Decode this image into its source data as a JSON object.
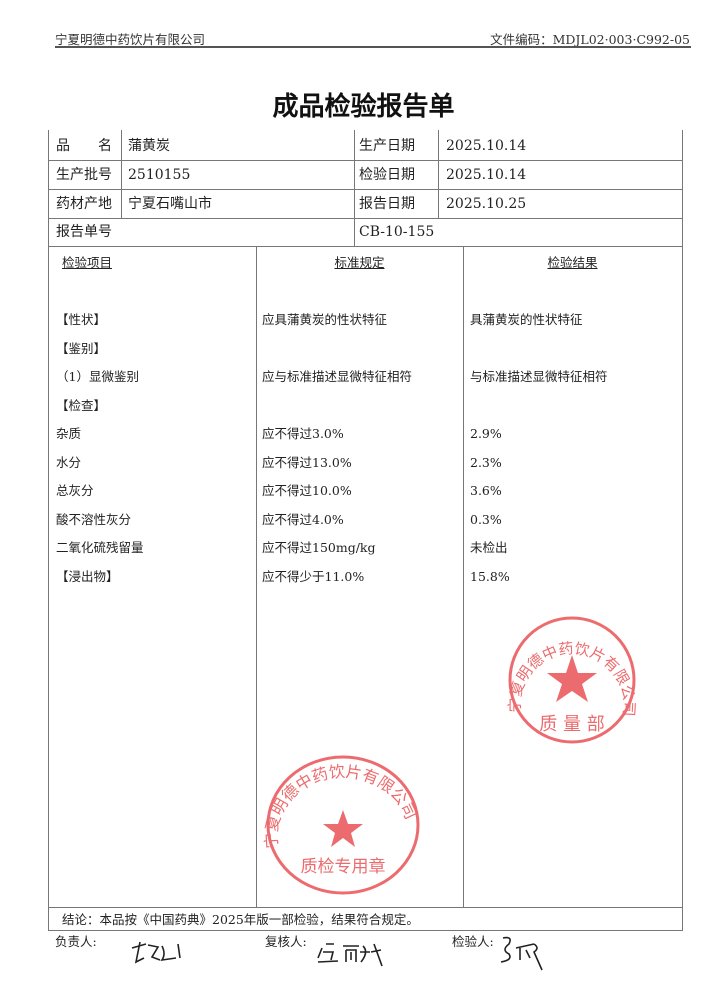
{
  "header": {
    "company": "宁夏明德中药饮片有限公司",
    "doc_code": "文件编码：MDJL02·003·C992-05"
  },
  "title": "成品检验报告单",
  "info": {
    "product_name_label": "品　　名",
    "product_name": "蒲黄炭",
    "production_date_label": "生产日期",
    "production_date": "2025.10.14",
    "batch_label": "生产批号",
    "batch": "2510155",
    "inspection_date_label": "检验日期",
    "inspection_date": "2025.10.14",
    "origin_label": "药材产地",
    "origin": "宁夏石嘴山市",
    "report_date_label": "报告日期",
    "report_date": "2025.10.25",
    "report_no_label": "报告单号",
    "report_no": "CB-10-155"
  },
  "results": {
    "headers": [
      "检验项目",
      "标准规定",
      "检验结果"
    ],
    "rows": [
      [
        "【性状】",
        "应具蒲黄炭的性状特征",
        "具蒲黄炭的性状特征"
      ],
      [
        "【鉴别】",
        "",
        ""
      ],
      [
        "（1）显微鉴别",
        "应与标准描述显微特征相符",
        "与标准描述显微特征相符"
      ],
      [
        "【检查】",
        "",
        ""
      ],
      [
        "杂质",
        "应不得过3.0%",
        "2.9%"
      ],
      [
        "水分",
        "应不得过13.0%",
        "2.3%"
      ],
      [
        "总灰分",
        "应不得过10.0%",
        "3.6%"
      ],
      [
        "酸不溶性灰分",
        "应不得过4.0%",
        "0.3%"
      ],
      [
        "二氧化硫残留量",
        "应不得过150mg/kg",
        "未检出"
      ],
      [
        "【浸出物】",
        "应不得少于11.0%",
        "15.8%"
      ]
    ]
  },
  "conclusion": "结论：本品按《中国药典》2025年版一部检验，结果符合规定。",
  "signatures": {
    "responsible_label": "负责人:",
    "reviewer_label": "复核人:",
    "inspector_label": "检验人:"
  },
  "stamps": {
    "top": {
      "ring_text": "宁夏明德中药饮片有限公司",
      "bottom_text": "质量部",
      "color": "#e8474a"
    },
    "bottom": {
      "ring_text": "宁夏明德中药饮片有限公司",
      "bottom_text": "质检专用章",
      "color": "#e8474a"
    }
  }
}
